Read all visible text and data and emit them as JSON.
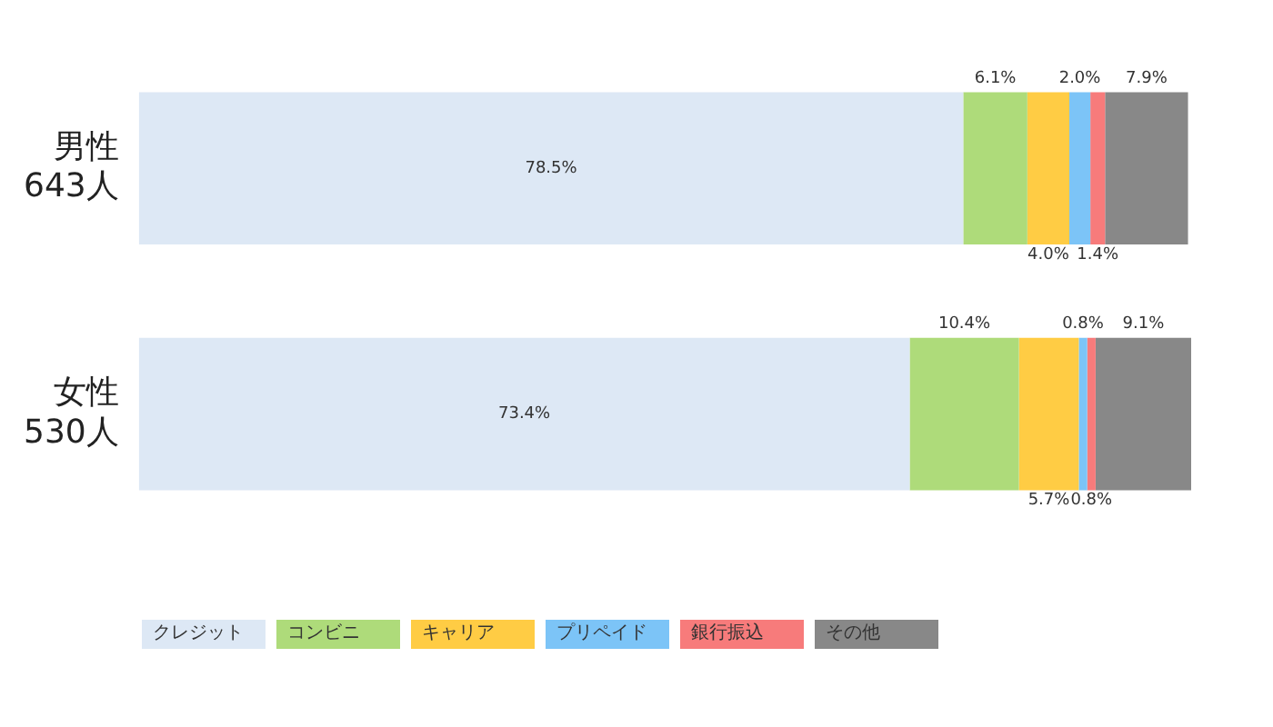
{
  "chart_data": {
    "type": "bar",
    "orientation": "horizontal",
    "stacked": true,
    "categories": [
      "男性\n643人",
      "女性\n530人"
    ],
    "legend": "bottom",
    "tick_labels": "y",
    "series": [
      {
        "name": "クレジット",
        "color": "#dde8f5",
        "values": [
          78.5,
          73.4
        ],
        "value_labels": [
          "78.5%",
          "73.4%"
        ]
      },
      {
        "name": "コンビニ",
        "color": "#aedb7a",
        "values": [
          6.1,
          10.4
        ],
        "value_labels": [
          "6.1%",
          "10.4%"
        ]
      },
      {
        "name": "キャリア",
        "color": "#ffcc44",
        "values": [
          4.0,
          5.7
        ],
        "value_labels": [
          "4.0%",
          "5.7%"
        ]
      },
      {
        "name": "プリペイド",
        "color": "#7cc4f7",
        "values": [
          2.0,
          0.8
        ],
        "value_labels": [
          "2.0%",
          "0.8%"
        ]
      },
      {
        "name": "銀行振込",
        "color": "#f77b7b",
        "values": [
          1.4,
          0.8
        ],
        "value_labels": [
          "1.4%",
          "0.8%"
        ]
      },
      {
        "name": "その他",
        "color": "#888888",
        "values": [
          7.9,
          9.1
        ],
        "value_labels": [
          "7.9%",
          "9.1%"
        ]
      }
    ]
  }
}
